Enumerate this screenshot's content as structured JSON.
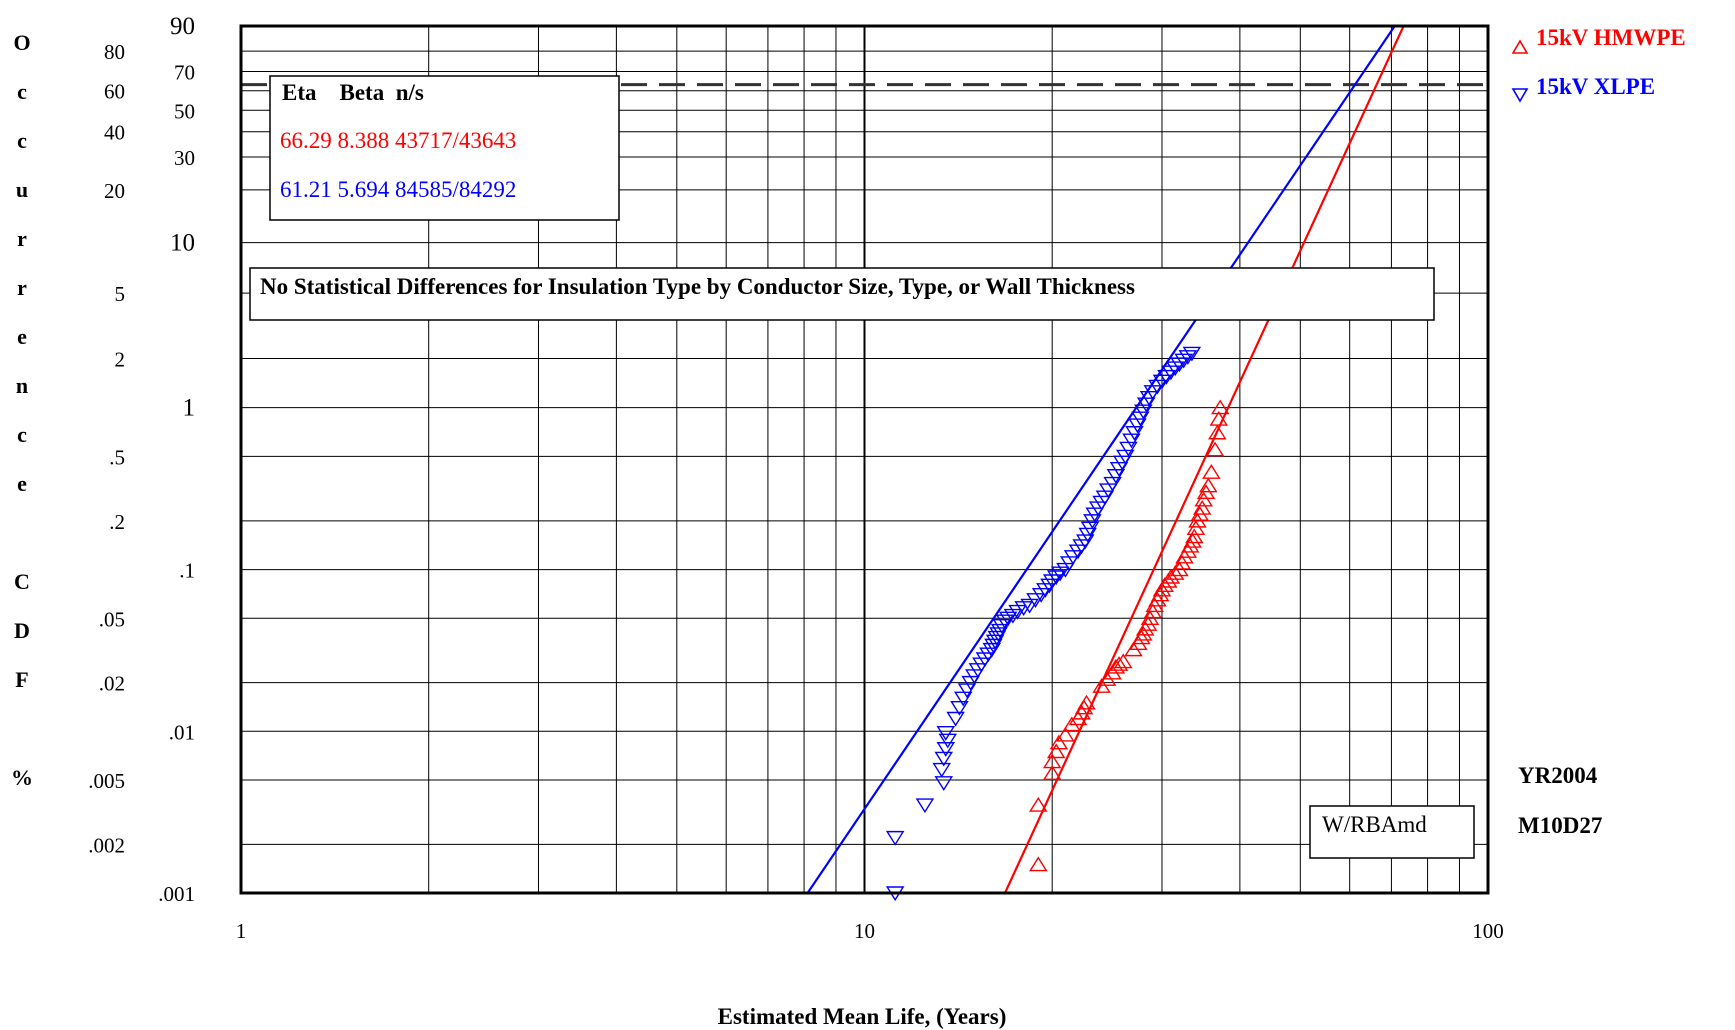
{
  "chart_data": {
    "type": "scatter",
    "title": "",
    "xlabel": "Estimated Mean Life, (Years)",
    "ylabel": "Occurrence CDF %",
    "x_scale": "log",
    "y_scale": "weibull",
    "xlim": [
      1,
      100
    ],
    "ylim": [
      0.001,
      90
    ],
    "x_ticks": [
      "1",
      "10",
      "100"
    ],
    "y_ticks": [
      {
        "value": 90,
        "label": "90"
      },
      {
        "value": 80,
        "label": "80"
      },
      {
        "value": 70,
        "label": "70"
      },
      {
        "value": 60,
        "label": "60"
      },
      {
        "value": 50,
        "label": "50"
      },
      {
        "value": 40,
        "label": "40"
      },
      {
        "value": 30,
        "label": "30"
      },
      {
        "value": 20,
        "label": "20"
      },
      {
        "value": 10,
        "label": "10"
      },
      {
        "value": 5,
        "label": "5"
      },
      {
        "value": 2,
        "label": "2"
      },
      {
        "value": 1,
        "label": "1"
      },
      {
        "value": 0.5,
        "label": ".5"
      },
      {
        "value": 0.2,
        "label": ".2"
      },
      {
        "value": 0.1,
        "label": ".1"
      },
      {
        "value": 0.05,
        "label": ".05"
      },
      {
        "value": 0.02,
        "label": ".02"
      },
      {
        "value": 0.01,
        "label": ".01"
      },
      {
        "value": 0.005,
        "label": ".005"
      },
      {
        "value": 0.002,
        "label": ".002"
      },
      {
        "value": 0.001,
        "label": ".001"
      }
    ],
    "grid": true,
    "reference_line_pct": 63.2,
    "legend": {
      "placement": "right-outside-top",
      "entries": [
        {
          "label": "15kV HMWPE",
          "color": "#ff0000",
          "marker": "triangle-up"
        },
        {
          "label": "15kV XLPE",
          "color": "#0000ff",
          "marker": "triangle-down"
        }
      ]
    },
    "parameter_table": {
      "header": "Eta    Beta  n/s",
      "rows": [
        {
          "text": "66.29 8.388 43717/43643",
          "color": "#ff0000"
        },
        {
          "text": "61.21 5.694 84585/84292",
          "color": "#0000ff"
        }
      ]
    },
    "annotations": {
      "note": "No Statistical Differences for Insulation Type by Conductor Size, Type, or Wall Thickness",
      "method": "W/RBAmd",
      "stamp_year": "YR2004",
      "stamp_date": "M10D27"
    },
    "series": [
      {
        "name": "15kV HMWPE",
        "color": "#ff0000",
        "marker": "triangle-up",
        "fit": {
          "eta": 66.29,
          "beta": 8.388
        },
        "points": [
          [
            19.0,
            0.0015
          ],
          [
            19.0,
            0.0035
          ],
          [
            20.0,
            0.0055
          ],
          [
            20.0,
            0.0065
          ],
          [
            20.3,
            0.0075
          ],
          [
            20.5,
            0.0085
          ],
          [
            21.0,
            0.0095
          ],
          [
            21.5,
            0.011
          ],
          [
            22.0,
            0.012
          ],
          [
            22.3,
            0.013
          ],
          [
            22.5,
            0.014
          ],
          [
            22.7,
            0.015
          ],
          [
            24.0,
            0.019
          ],
          [
            24.5,
            0.021
          ],
          [
            25.0,
            0.023
          ],
          [
            25.3,
            0.025
          ],
          [
            25.6,
            0.026
          ],
          [
            26.0,
            0.027
          ],
          [
            27.0,
            0.032
          ],
          [
            27.5,
            0.035
          ],
          [
            27.8,
            0.038
          ],
          [
            28.0,
            0.04
          ],
          [
            28.2,
            0.043
          ],
          [
            28.5,
            0.046
          ],
          [
            28.7,
            0.05
          ],
          [
            29.0,
            0.055
          ],
          [
            29.2,
            0.06
          ],
          [
            29.5,
            0.065
          ],
          [
            29.8,
            0.07
          ],
          [
            30.0,
            0.075
          ],
          [
            30.3,
            0.08
          ],
          [
            30.7,
            0.085
          ],
          [
            31.0,
            0.09
          ],
          [
            31.5,
            0.095
          ],
          [
            32.0,
            0.1
          ],
          [
            32.3,
            0.11
          ],
          [
            32.6,
            0.12
          ],
          [
            33.0,
            0.13
          ],
          [
            33.3,
            0.14
          ],
          [
            33.6,
            0.15
          ],
          [
            33.8,
            0.16
          ],
          [
            34.0,
            0.18
          ],
          [
            34.2,
            0.2
          ],
          [
            34.5,
            0.22
          ],
          [
            34.8,
            0.24
          ],
          [
            35.0,
            0.27
          ],
          [
            35.3,
            0.3
          ],
          [
            35.6,
            0.33
          ],
          [
            36.0,
            0.4
          ],
          [
            36.5,
            0.55
          ],
          [
            36.8,
            0.7
          ],
          [
            37.0,
            0.85
          ],
          [
            37.2,
            1.0
          ]
        ]
      },
      {
        "name": "15kV XLPE",
        "color": "#0000ff",
        "marker": "triangle-down",
        "fit": {
          "eta": 61.21,
          "beta": 5.694
        },
        "points": [
          [
            11.2,
            0.001
          ],
          [
            11.2,
            0.0022
          ],
          [
            12.5,
            0.0035
          ],
          [
            13.4,
            0.0048
          ],
          [
            13.3,
            0.0058
          ],
          [
            13.4,
            0.0068
          ],
          [
            13.5,
            0.0078
          ],
          [
            13.6,
            0.0088
          ],
          [
            13.5,
            0.0098
          ],
          [
            14.0,
            0.012
          ],
          [
            14.2,
            0.014
          ],
          [
            14.4,
            0.016
          ],
          [
            14.6,
            0.018
          ],
          [
            14.8,
            0.02
          ],
          [
            15.0,
            0.022
          ],
          [
            15.2,
            0.024
          ],
          [
            15.4,
            0.026
          ],
          [
            15.6,
            0.028
          ],
          [
            15.8,
            0.03
          ],
          [
            16.0,
            0.032
          ],
          [
            16.1,
            0.034
          ],
          [
            16.2,
            0.036
          ],
          [
            16.3,
            0.038
          ],
          [
            16.4,
            0.04
          ],
          [
            16.5,
            0.042
          ],
          [
            16.6,
            0.045
          ],
          [
            16.8,
            0.048
          ],
          [
            17.0,
            0.05
          ],
          [
            17.3,
            0.052
          ],
          [
            17.6,
            0.055
          ],
          [
            18.0,
            0.058
          ],
          [
            18.4,
            0.06
          ],
          [
            18.8,
            0.065
          ],
          [
            19.2,
            0.07
          ],
          [
            19.5,
            0.075
          ],
          [
            19.8,
            0.08
          ],
          [
            20.0,
            0.085
          ],
          [
            20.3,
            0.09
          ],
          [
            20.6,
            0.095
          ],
          [
            21.0,
            0.1
          ],
          [
            21.3,
            0.11
          ],
          [
            21.6,
            0.12
          ],
          [
            22.0,
            0.13
          ],
          [
            22.3,
            0.14
          ],
          [
            22.6,
            0.15
          ],
          [
            22.8,
            0.165
          ],
          [
            23.0,
            0.18
          ],
          [
            23.2,
            0.2
          ],
          [
            23.4,
            0.22
          ],
          [
            23.7,
            0.24
          ],
          [
            24.0,
            0.26
          ],
          [
            24.3,
            0.28
          ],
          [
            24.6,
            0.31
          ],
          [
            25.0,
            0.34
          ],
          [
            25.3,
            0.38
          ],
          [
            25.6,
            0.42
          ],
          [
            25.9,
            0.46
          ],
          [
            26.2,
            0.5
          ],
          [
            26.5,
            0.56
          ],
          [
            26.8,
            0.63
          ],
          [
            27.1,
            0.7
          ],
          [
            27.4,
            0.78
          ],
          [
            27.7,
            0.86
          ],
          [
            28.0,
            0.95
          ],
          [
            28.3,
            1.05
          ],
          [
            28.6,
            1.15
          ],
          [
            29.0,
            1.25
          ],
          [
            29.5,
            1.35
          ],
          [
            30.0,
            1.45
          ],
          [
            30.5,
            1.55
          ],
          [
            31.0,
            1.65
          ],
          [
            31.5,
            1.75
          ],
          [
            32.0,
            1.85
          ],
          [
            32.5,
            1.95
          ],
          [
            33.0,
            2.05
          ],
          [
            33.5,
            2.15
          ]
        ]
      }
    ]
  },
  "y_axis_letters": [
    "O",
    "c",
    "c",
    "u",
    "r",
    "r",
    "e",
    "n",
    "c",
    "e",
    "",
    "C",
    "D",
    "F",
    "",
    "%"
  ]
}
